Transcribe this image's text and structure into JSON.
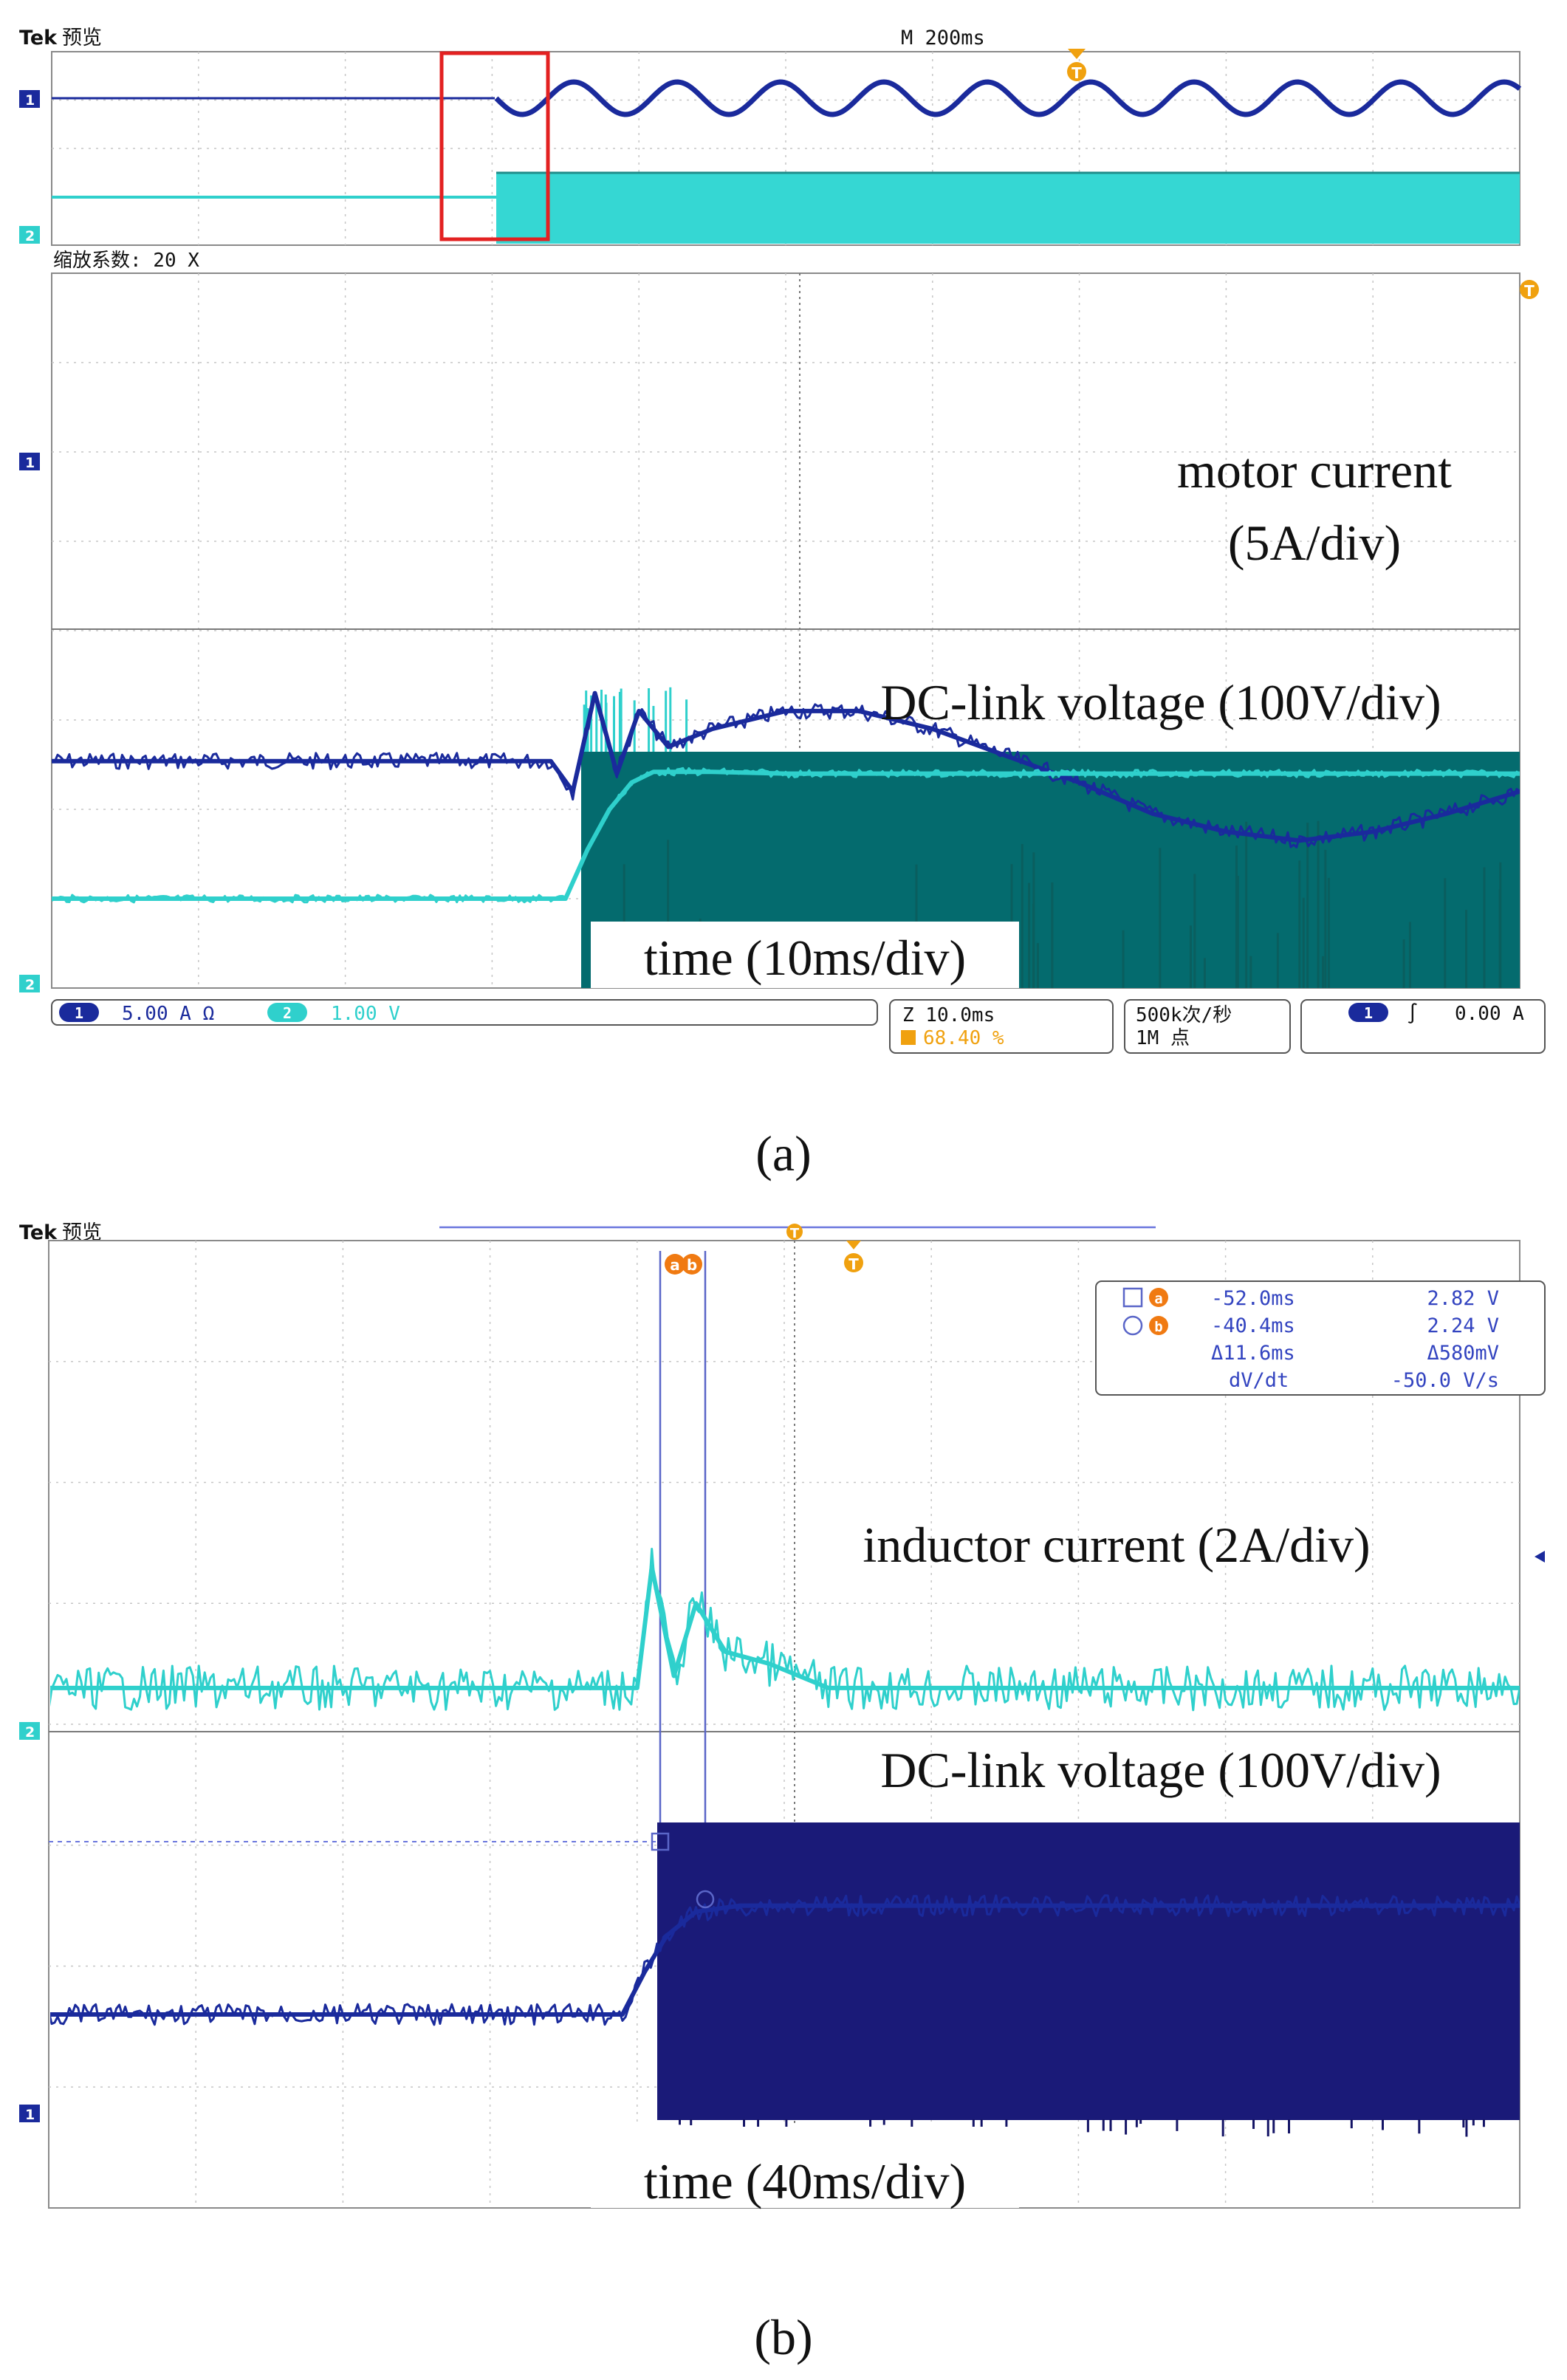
{
  "chart_data": [
    {
      "type": "line",
      "panel_label": "(a)",
      "overview": {
        "brand": "Tek",
        "mode": "预览",
        "timebase": "M 200ms",
        "trigger_marker": "T",
        "channel_markers": [
          "1",
          "2"
        ]
      },
      "zoom_label": "缩放系数: 20 X",
      "trigger_marker": "T",
      "channel_markers": [
        "1",
        "2"
      ],
      "annotations": {
        "ch1_line1": "motor current",
        "ch1_line2": "(5A/div)",
        "ch2": "DC-link voltage (100V/div)",
        "time": "time (10ms/div)"
      },
      "series": [
        {
          "name": "motor current",
          "color": "#1a2a9c",
          "x_div": [
            0,
            1,
            2,
            3,
            3.4,
            3.55,
            3.7,
            3.85,
            4.0,
            4.2,
            4.5,
            5.0,
            5.5,
            6.0,
            6.5,
            7.0,
            7.5,
            8.0,
            8.5,
            9.0,
            9.5,
            10.0
          ],
          "y_div": [
            2.54,
            2.54,
            2.54,
            2.54,
            2.54,
            2.2,
            3.3,
            2.4,
            3.1,
            2.7,
            2.9,
            3.1,
            3.1,
            2.9,
            2.6,
            2.3,
            1.95,
            1.75,
            1.65,
            1.75,
            1.95,
            2.2
          ]
        },
        {
          "name": "DC-link voltage",
          "color": "#2fd0cc",
          "x_div": [
            0,
            1,
            2,
            3,
            3.5,
            3.65,
            3.8,
            3.95,
            4.1,
            4.5,
            5,
            6,
            7,
            8,
            9,
            10
          ],
          "y_div": [
            1.0,
            1.0,
            1.0,
            1.0,
            1.0,
            1.55,
            2.0,
            2.3,
            2.42,
            2.42,
            2.4,
            2.4,
            2.4,
            2.4,
            2.4,
            2.4
          ]
        }
      ],
      "status_bar": {
        "ch1_num": "1",
        "ch1_scale": "5.00 A  Ω",
        "ch2_num": "2",
        "ch2_scale": "1.00 V",
        "zoom_timebase": "Z 10.0ms",
        "trigger_pos": "68.40 %",
        "sample_rate": "500k次/秒",
        "record_length": "1M 点",
        "trig_ch": "1",
        "trig_slope": "∫",
        "trig_level": "0.00 A"
      }
    },
    {
      "type": "line",
      "panel_label": "(b)",
      "brand": "Tek",
      "mode": "预览",
      "cursor_labels": [
        "a",
        "b"
      ],
      "trigger_marker": "T",
      "channel_markers": [
        "2",
        "1"
      ],
      "cursor_readout": {
        "row1": [
          "-52.0ms",
          "2.82 V"
        ],
        "row2": [
          "-40.4ms",
          "2.24 V"
        ],
        "row3": [
          "Δ11.6ms",
          "Δ580mV"
        ],
        "row4": [
          "dV/dt",
          "-50.0 V/s"
        ]
      },
      "annotations": {
        "ch2": "inductor current (2A/div)",
        "ch1": "DC-link voltage (100V/div)",
        "time": "time (40ms/div)"
      },
      "series": [
        {
          "name": "inductor current",
          "color": "#2fd0cc",
          "x_div": [
            0,
            1,
            2,
            3,
            4,
            4.1,
            4.25,
            4.4,
            4.6,
            4.9,
            5.3,
            6,
            7,
            8,
            9,
            10
          ],
          "y_div": [
            4.3,
            4.3,
            4.3,
            4.3,
            4.3,
            5.3,
            4.4,
            5.0,
            4.6,
            4.5,
            4.3,
            4.3,
            4.3,
            4.3,
            4.3,
            4.3
          ]
        },
        {
          "name": "DC-link voltage",
          "color": "#1a2a9c",
          "x_div": [
            0,
            1,
            2,
            3,
            3.9,
            4.05,
            4.2,
            4.4,
            4.7,
            5,
            6,
            7,
            8,
            9,
            10
          ],
          "y_div": [
            1.6,
            1.6,
            1.6,
            1.6,
            1.6,
            1.95,
            2.25,
            2.45,
            2.5,
            2.5,
            2.5,
            2.5,
            2.5,
            2.5,
            2.5
          ]
        }
      ]
    }
  ]
}
